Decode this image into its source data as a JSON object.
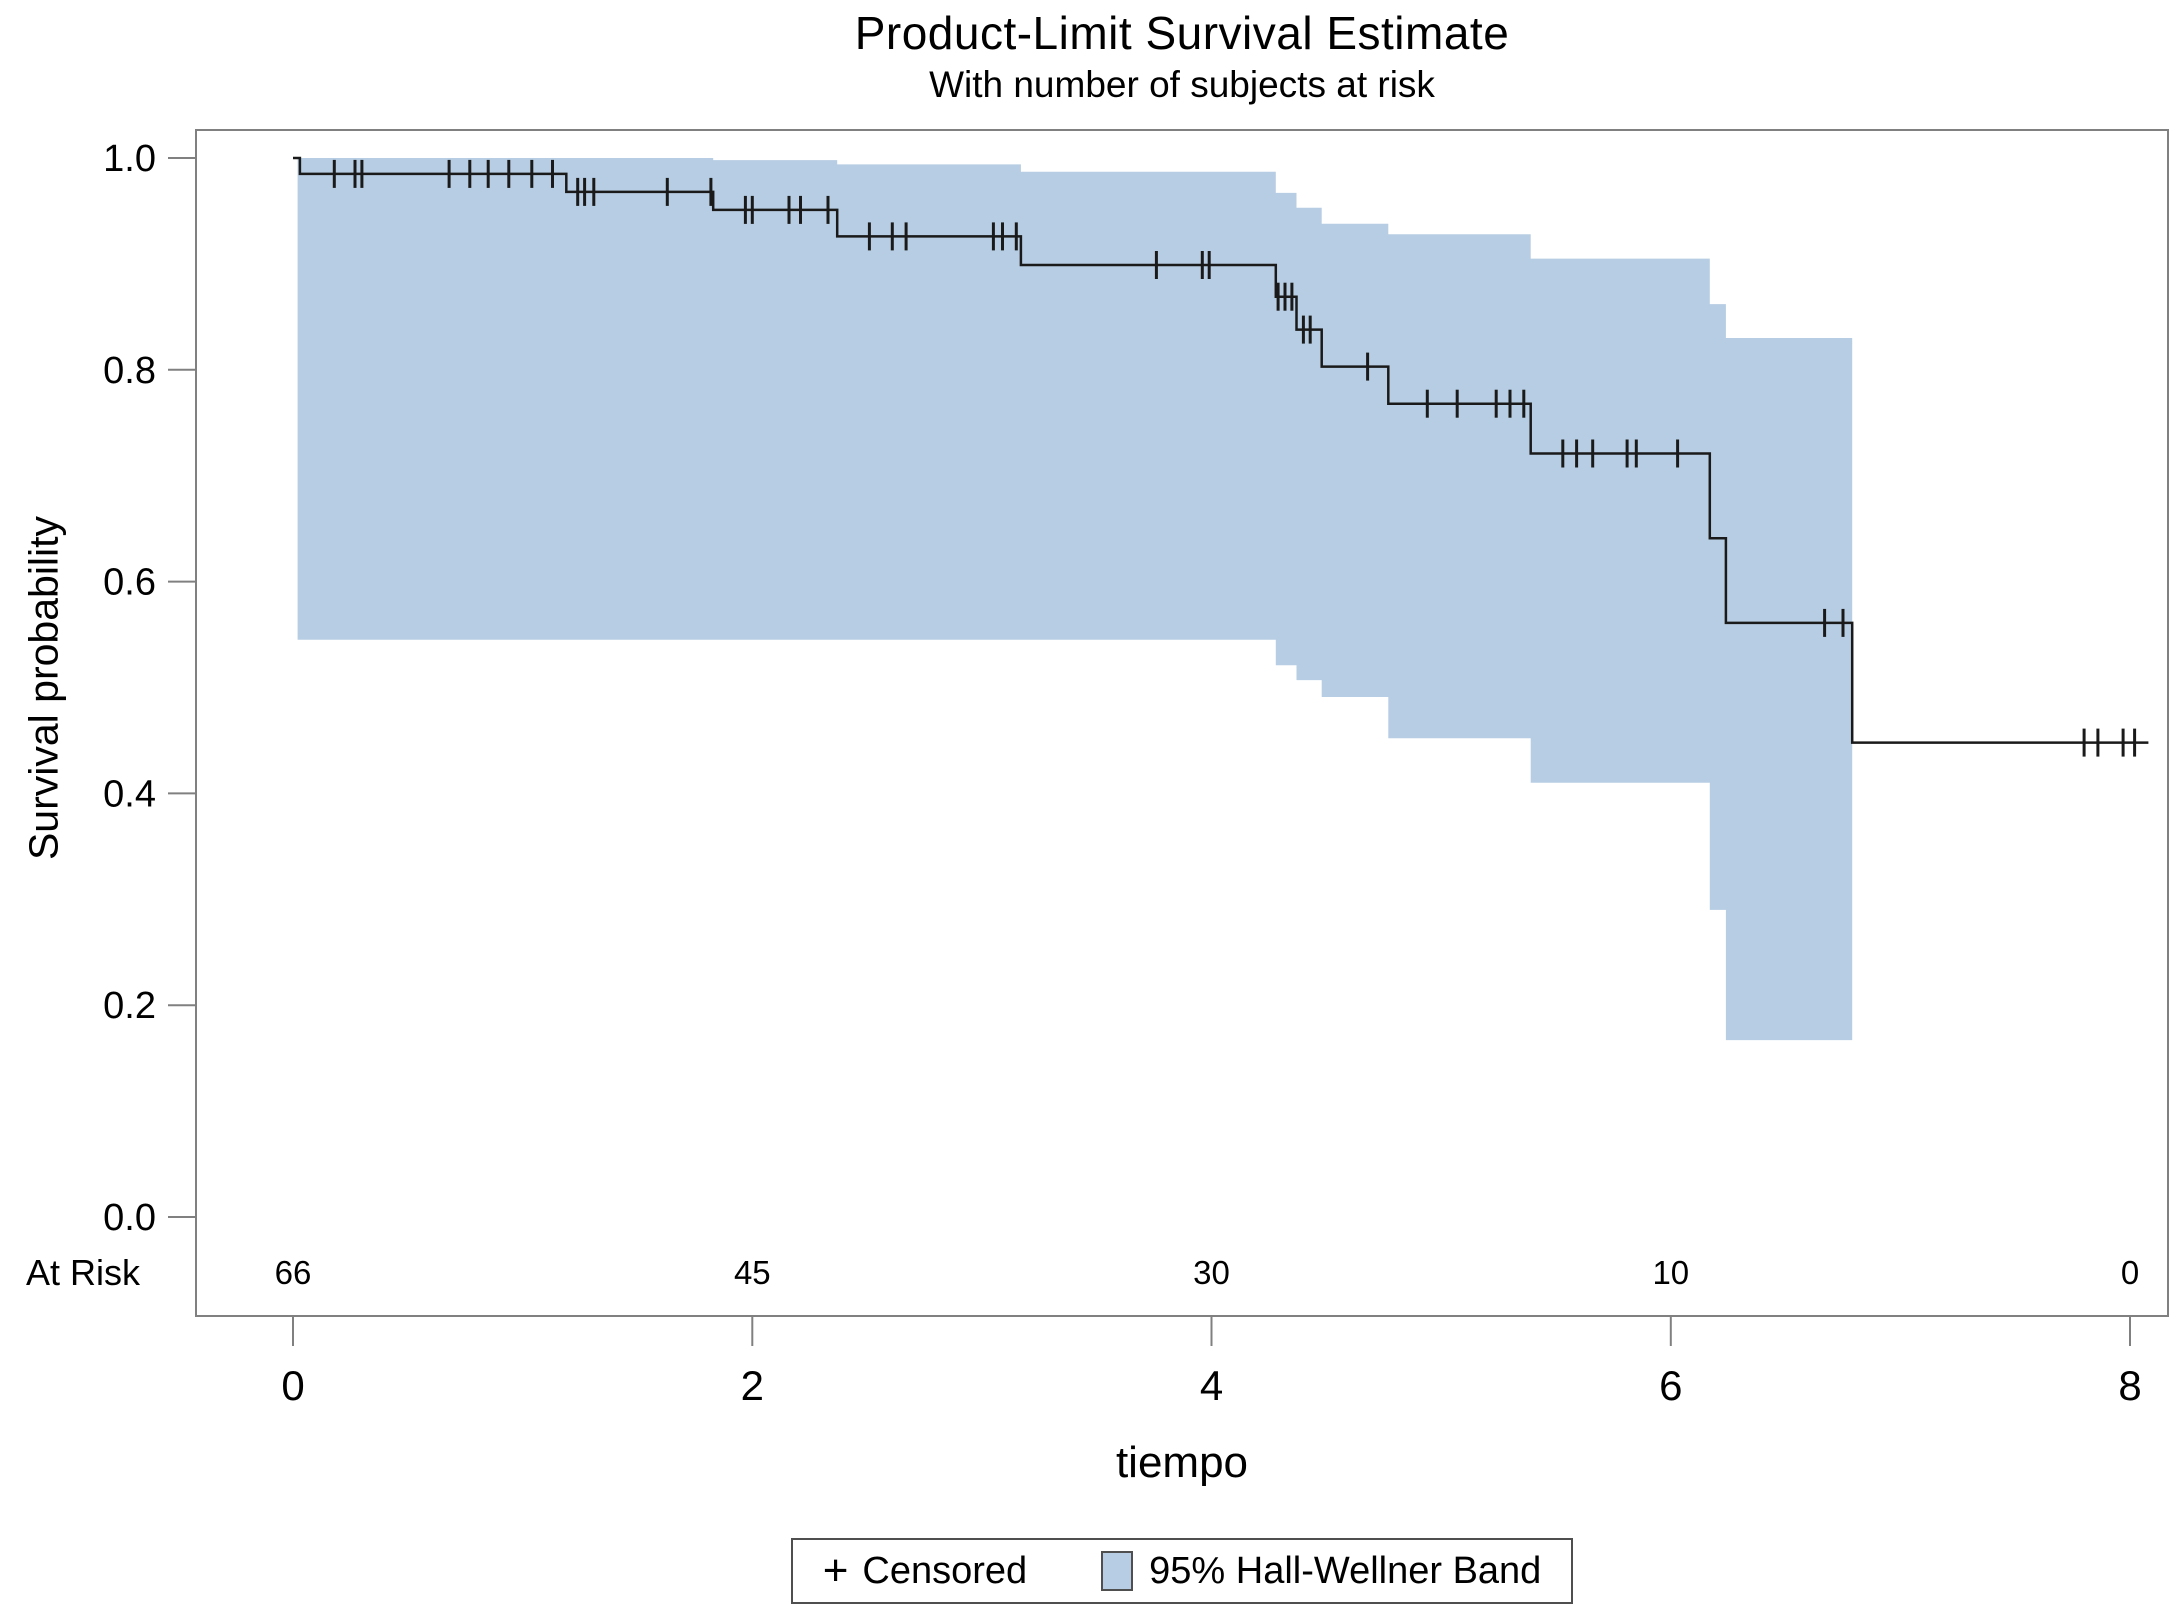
{
  "colors": {
    "band_fill": "#b7cde3",
    "curve_line": "#1a1a1a",
    "frame": "#808080",
    "tick": "#808080",
    "text": "#000000",
    "legend_border": "#4f4f4f"
  },
  "chart_data": {
    "type": "line",
    "subtype": "kaplan-meier-step-curve",
    "title": "Product-Limit Survival Estimate",
    "subtitle": "With number of subjects at risk",
    "xlabel": "tiempo",
    "ylabel": "Survival probability",
    "xlim": [
      0,
      8
    ],
    "ylim": [
      0.0,
      1.0
    ],
    "grid": false,
    "x_ticks": [
      0,
      2,
      4,
      6,
      8
    ],
    "y_ticks": [
      1.0,
      0.8,
      0.6,
      0.4,
      0.2,
      0.0
    ],
    "y_tick_labels": [
      "1.0",
      "0.8",
      "0.6",
      "0.4",
      "0.2",
      "0.0"
    ],
    "x_tick_labels": [
      "0",
      "2",
      "4",
      "6",
      "8"
    ],
    "at_risk": {
      "label": "At Risk",
      "times": [
        0,
        2,
        4,
        6,
        8
      ],
      "counts": [
        "66",
        "45",
        "30",
        "10",
        "0"
      ]
    },
    "survival_steps": [
      {
        "t": 0.0,
        "s": 1.0
      },
      {
        "t": 0.03,
        "s": 0.985
      },
      {
        "t": 1.19,
        "s": 0.968
      },
      {
        "t": 1.83,
        "s": 0.951
      },
      {
        "t": 2.37,
        "s": 0.926
      },
      {
        "t": 3.17,
        "s": 0.899
      },
      {
        "t": 4.28,
        "s": 0.869
      },
      {
        "t": 4.37,
        "s": 0.838
      },
      {
        "t": 4.48,
        "s": 0.803
      },
      {
        "t": 4.77,
        "s": 0.768
      },
      {
        "t": 5.39,
        "s": 0.721
      },
      {
        "t": 6.17,
        "s": 0.641
      },
      {
        "t": 6.24,
        "s": 0.561
      },
      {
        "t": 6.79,
        "s": 0.448
      }
    ],
    "curve_end_t": 8.08,
    "censor_marks": [
      {
        "t": 0.18,
        "s": 0.985
      },
      {
        "t": 0.27,
        "s": 0.985
      },
      {
        "t": 0.3,
        "s": 0.985
      },
      {
        "t": 0.68,
        "s": 0.985
      },
      {
        "t": 0.77,
        "s": 0.985
      },
      {
        "t": 0.85,
        "s": 0.985
      },
      {
        "t": 0.94,
        "s": 0.985
      },
      {
        "t": 1.04,
        "s": 0.985
      },
      {
        "t": 1.13,
        "s": 0.985
      },
      {
        "t": 1.24,
        "s": 0.968
      },
      {
        "t": 1.27,
        "s": 0.968
      },
      {
        "t": 1.31,
        "s": 0.968
      },
      {
        "t": 1.63,
        "s": 0.968
      },
      {
        "t": 1.82,
        "s": 0.968
      },
      {
        "t": 1.97,
        "s": 0.951
      },
      {
        "t": 2.0,
        "s": 0.951
      },
      {
        "t": 2.16,
        "s": 0.951
      },
      {
        "t": 2.21,
        "s": 0.951
      },
      {
        "t": 2.33,
        "s": 0.951
      },
      {
        "t": 2.51,
        "s": 0.926
      },
      {
        "t": 2.61,
        "s": 0.926
      },
      {
        "t": 2.67,
        "s": 0.926
      },
      {
        "t": 3.05,
        "s": 0.926
      },
      {
        "t": 3.09,
        "s": 0.926
      },
      {
        "t": 3.15,
        "s": 0.926
      },
      {
        "t": 3.76,
        "s": 0.899
      },
      {
        "t": 3.96,
        "s": 0.899
      },
      {
        "t": 3.99,
        "s": 0.899
      },
      {
        "t": 4.29,
        "s": 0.869
      },
      {
        "t": 4.32,
        "s": 0.869
      },
      {
        "t": 4.35,
        "s": 0.869
      },
      {
        "t": 4.4,
        "s": 0.838
      },
      {
        "t": 4.43,
        "s": 0.838
      },
      {
        "t": 4.68,
        "s": 0.803
      },
      {
        "t": 4.94,
        "s": 0.768
      },
      {
        "t": 5.07,
        "s": 0.768
      },
      {
        "t": 5.24,
        "s": 0.768
      },
      {
        "t": 5.3,
        "s": 0.768
      },
      {
        "t": 5.36,
        "s": 0.768
      },
      {
        "t": 5.53,
        "s": 0.721
      },
      {
        "t": 5.59,
        "s": 0.721
      },
      {
        "t": 5.66,
        "s": 0.721
      },
      {
        "t": 5.81,
        "s": 0.721
      },
      {
        "t": 5.85,
        "s": 0.721
      },
      {
        "t": 6.03,
        "s": 0.721
      },
      {
        "t": 6.67,
        "s": 0.561
      },
      {
        "t": 6.75,
        "s": 0.561
      },
      {
        "t": 7.8,
        "s": 0.448
      },
      {
        "t": 7.86,
        "s": 0.448
      },
      {
        "t": 7.97,
        "s": 0.448
      },
      {
        "t": 8.02,
        "s": 0.448
      }
    ],
    "band_segments": [
      {
        "t0": 0.02,
        "t1": 1.83,
        "lower": 0.545,
        "upper": 1.0
      },
      {
        "t0": 1.83,
        "t1": 2.37,
        "lower": 0.545,
        "upper": 0.998
      },
      {
        "t0": 2.37,
        "t1": 3.17,
        "lower": 0.545,
        "upper": 0.994
      },
      {
        "t0": 3.17,
        "t1": 4.28,
        "lower": 0.545,
        "upper": 0.987
      },
      {
        "t0": 4.28,
        "t1": 4.37,
        "lower": 0.521,
        "upper": 0.967
      },
      {
        "t0": 4.37,
        "t1": 4.48,
        "lower": 0.507,
        "upper": 0.953
      },
      {
        "t0": 4.48,
        "t1": 4.77,
        "lower": 0.491,
        "upper": 0.938
      },
      {
        "t0": 4.77,
        "t1": 5.39,
        "lower": 0.452,
        "upper": 0.928
      },
      {
        "t0": 5.39,
        "t1": 6.17,
        "lower": 0.41,
        "upper": 0.905
      },
      {
        "t0": 6.17,
        "t1": 6.24,
        "lower": 0.29,
        "upper": 0.862
      },
      {
        "t0": 6.24,
        "t1": 6.79,
        "lower": 0.167,
        "upper": 0.83
      }
    ],
    "legend": {
      "position": "bottom-center",
      "censored_marker": "+",
      "censored_label": "Censored",
      "band_label": "95% Hall-Wellner Band"
    }
  }
}
